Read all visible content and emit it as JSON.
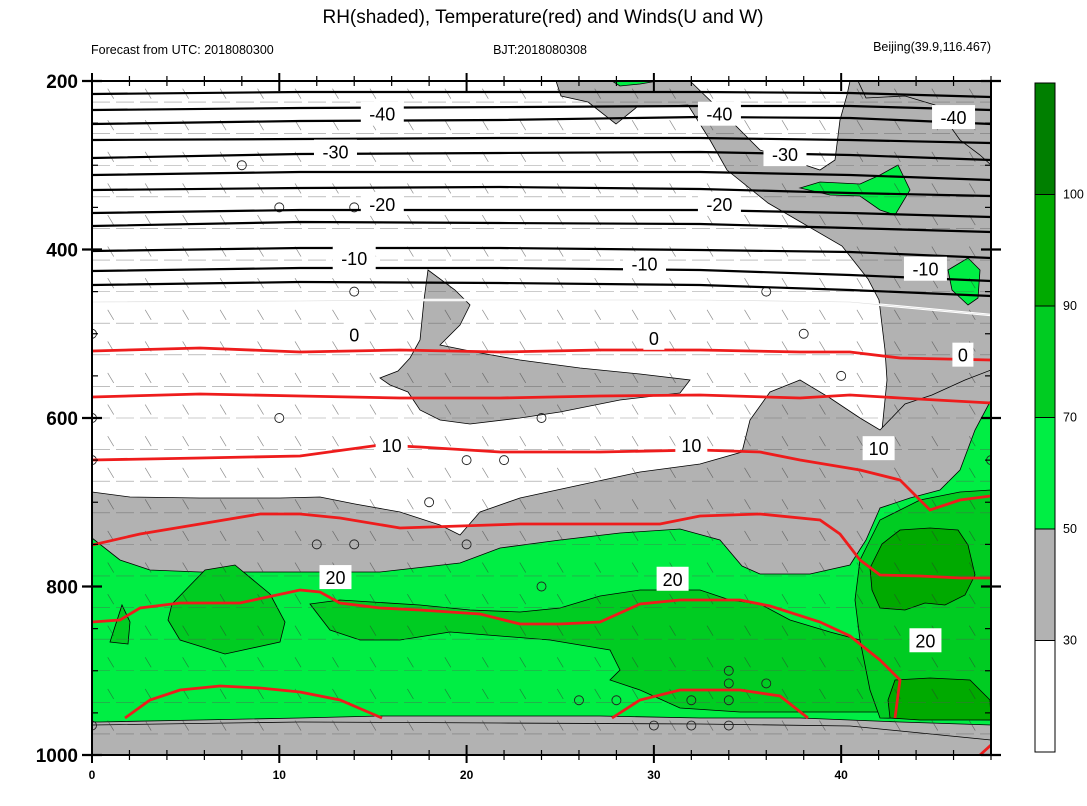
{
  "header": {
    "title": "RH(shaded), Temperature(red) and Winds(U and W)",
    "left_note": "Forecast from UTC: 2018080300",
    "center_note": "BJT:2018080308",
    "right_note": "Beijing(39.9,116.467)"
  },
  "chart_data": {
    "type": "contour",
    "title": "RH(shaded), Temperature(red) and Winds(U and W)",
    "x_ticks": [
      0,
      10,
      20,
      30,
      40
    ],
    "x_range": [
      0,
      48
    ],
    "y_ticks": [
      200,
      400,
      600,
      800,
      1000
    ],
    "y_range": [
      200,
      1000
    ],
    "y_inverted": true,
    "colorbar": {
      "levels": [
        30,
        50,
        70,
        90,
        100
      ],
      "colors": [
        "#ffffff",
        "#b2b2b2",
        "#00ee44",
        "#00cc22",
        "#00aa00",
        "#007f00"
      ]
    },
    "series": [
      {
        "name": "Temperature(red)",
        "color": "#ee1c1c"
      },
      {
        "name": "RH(shaded)",
        "color": "#00ee44"
      }
    ],
    "temperature_labels": [
      {
        "text": "-40",
        "x": 15.5,
        "y": 240
      },
      {
        "text": "-40",
        "x": 33.5,
        "y": 240
      },
      {
        "text": "-40",
        "x": 46,
        "y": 244
      },
      {
        "text": "-30",
        "x": 13,
        "y": 285
      },
      {
        "text": "-30",
        "x": 37,
        "y": 288
      },
      {
        "text": "-20",
        "x": 15.5,
        "y": 347
      },
      {
        "text": "-20",
        "x": 33.5,
        "y": 347
      },
      {
        "text": "-10",
        "x": 14,
        "y": 411
      },
      {
        "text": "-10",
        "x": 29.5,
        "y": 418
      },
      {
        "text": "-10",
        "x": 44.5,
        "y": 424
      },
      {
        "text": "0",
        "x": 14,
        "y": 502
      },
      {
        "text": "0",
        "x": 30,
        "y": 506
      },
      {
        "text": "0",
        "x": 46.5,
        "y": 526
      },
      {
        "text": "10",
        "x": 16,
        "y": 633
      },
      {
        "text": "10",
        "x": 32,
        "y": 633
      },
      {
        "text": "10",
        "x": 42,
        "y": 637
      },
      {
        "text": "20",
        "x": 13,
        "y": 790
      },
      {
        "text": "20",
        "x": 31,
        "y": 792
      },
      {
        "text": "20",
        "x": 44.5,
        "y": 865
      }
    ]
  }
}
